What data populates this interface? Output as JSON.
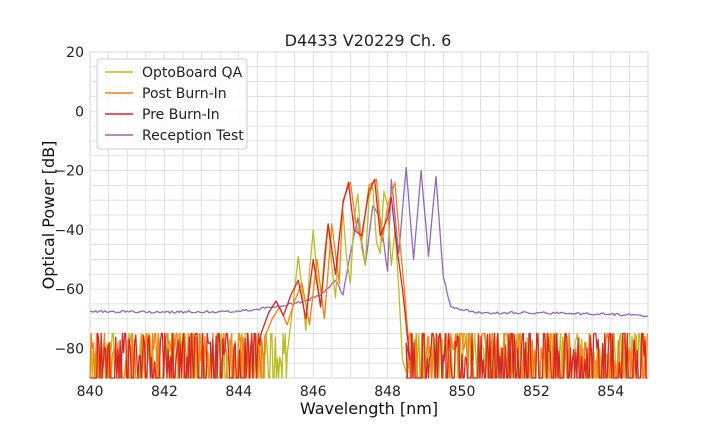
{
  "chart_data": {
    "type": "line",
    "title": "D4433 V20229 Ch. 6",
    "xlabel": "Wavelength [nm]",
    "ylabel": "Optical Power [dB]",
    "xlim": [
      840,
      855
    ],
    "ylim": [
      -90,
      20
    ],
    "xticks": [
      840,
      842,
      844,
      846,
      848,
      850,
      852,
      854
    ],
    "yticks": [
      -80,
      -60,
      -40,
      -20,
      0,
      20
    ],
    "grid": true,
    "legend": "top-left",
    "series": [
      {
        "name": "OptoBoard QA",
        "color": "#bcbd22",
        "noise_ranges": [
          [
            840,
            845.3
          ],
          [
            848.6,
            855
          ]
        ],
        "x": [
          845.3,
          845.45,
          845.6,
          845.7,
          845.8,
          845.9,
          846.0,
          846.1,
          846.2,
          846.3,
          846.4,
          846.5,
          846.6,
          846.7,
          846.8,
          846.9,
          847.0,
          847.1,
          847.2,
          847.3,
          847.4,
          847.5,
          847.6,
          847.7,
          847.8,
          847.9,
          848.0,
          848.1,
          848.2,
          848.3,
          848.4,
          848.5,
          848.6
        ],
        "y": [
          -82,
          -66,
          -49,
          -60,
          -74,
          -54,
          -40,
          -55,
          -66,
          -48,
          -38,
          -52,
          -63,
          -42,
          -34,
          -50,
          -58,
          -36,
          -28,
          -46,
          -52,
          -29,
          -25,
          -44,
          -48,
          -27,
          -32,
          -52,
          -40,
          -60,
          -84,
          -88,
          -88
        ]
      },
      {
        "name": "Post Burn-In",
        "color": "#ff7f0e",
        "noise_ranges": [
          [
            840,
            844.7
          ],
          [
            848.5,
            855
          ]
        ],
        "x": [
          844.7,
          844.9,
          845.1,
          845.3,
          845.5,
          845.7,
          845.9,
          846.1,
          846.3,
          846.5,
          846.7,
          846.8,
          847.0,
          847.15,
          847.3,
          847.5,
          847.7,
          847.85,
          848.0,
          848.2,
          848.3,
          848.45,
          848.6
        ],
        "y": [
          -76,
          -70,
          -66,
          -72,
          -64,
          -58,
          -72,
          -50,
          -70,
          -38,
          -58,
          -30,
          -24,
          -38,
          -44,
          -25,
          -23,
          -44,
          -32,
          -24,
          -40,
          -60,
          -84
        ]
      },
      {
        "name": "Pre Burn-In",
        "color": "#d62728",
        "noise_ranges": [
          [
            840,
            844.6
          ],
          [
            848.5,
            855
          ]
        ],
        "x": [
          844.6,
          844.8,
          845.0,
          845.2,
          845.4,
          845.6,
          845.8,
          846.0,
          846.2,
          846.4,
          846.6,
          846.8,
          846.95,
          847.1,
          847.3,
          847.5,
          847.65,
          847.8,
          848.0,
          848.1,
          848.25,
          848.4,
          848.6
        ],
        "y": [
          -75,
          -68,
          -64,
          -69,
          -62,
          -57,
          -70,
          -50,
          -66,
          -38,
          -55,
          -31,
          -24,
          -40,
          -42,
          -27,
          -23,
          -42,
          -36,
          -29,
          -46,
          -60,
          -84
        ]
      },
      {
        "name": "Reception Test",
        "color": "#9467bd",
        "x": [
          840,
          842,
          844,
          845,
          845.8,
          846.2,
          846.6,
          846.8,
          847.0,
          847.2,
          847.4,
          847.6,
          847.8,
          848.0,
          848.1,
          848.3,
          848.5,
          848.7,
          848.9,
          849.1,
          849.3,
          849.5,
          849.7,
          850.0,
          850.5,
          852,
          854,
          855
        ],
        "y": [
          -67.5,
          -67.8,
          -67.5,
          -66,
          -64,
          -62,
          -57,
          -62,
          -48,
          -36,
          -52,
          -32,
          -36,
          -54,
          -23,
          -48,
          -19,
          -50,
          -20,
          -49,
          -22,
          -56,
          -66,
          -67,
          -68,
          -68,
          -68.5,
          -69
        ]
      }
    ]
  }
}
